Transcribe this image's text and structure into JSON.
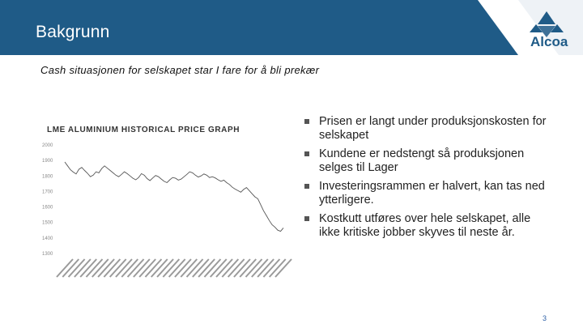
{
  "header": {
    "title": "Bakgrunn",
    "background_color": "#1f5b87"
  },
  "logo": {
    "text": "Alcoa",
    "icon": "alcoa-logo-icon",
    "color": "#1f5b87"
  },
  "subtitle": "Cash situasjonen for selskapet star I fare for å bli prekær",
  "chart_data": {
    "type": "line",
    "title": "LME ALUMINIUM HISTORICAL PRICE GRAPH",
    "y_ticks": [
      "2000",
      "1900",
      "1800",
      "1700",
      "1600",
      "1500",
      "1400",
      "1300"
    ],
    "ylim": [
      1300,
      2000
    ],
    "grid": false,
    "color": "#555555",
    "values": [
      1885,
      1860,
      1835,
      1820,
      1808,
      1838,
      1850,
      1830,
      1812,
      1790,
      1800,
      1822,
      1815,
      1842,
      1860,
      1845,
      1830,
      1815,
      1800,
      1790,
      1805,
      1822,
      1810,
      1795,
      1780,
      1770,
      1785,
      1810,
      1800,
      1778,
      1765,
      1782,
      1798,
      1790,
      1775,
      1760,
      1752,
      1770,
      1785,
      1780,
      1768,
      1775,
      1790,
      1805,
      1822,
      1815,
      1800,
      1788,
      1795,
      1808,
      1800,
      1785,
      1790,
      1782,
      1770,
      1760,
      1768,
      1752,
      1740,
      1722,
      1710,
      1700,
      1690,
      1708,
      1720,
      1700,
      1680,
      1660,
      1648,
      1610,
      1570,
      1540,
      1508,
      1480,
      1465,
      1445,
      1438,
      1460
    ],
    "x_label_count": 38
  },
  "bullets": [
    "Prisen er langt under produksjonskosten for selskapet",
    "Kundene er nedstengt så produksjonen selges til Lager",
    "Investeringsrammen er halvert, kan tas ned ytterligere.",
    "Kostkutt utføres over hele selskapet, alle ikke kritiske jobber skyves til neste år."
  ],
  "page_number": "3"
}
